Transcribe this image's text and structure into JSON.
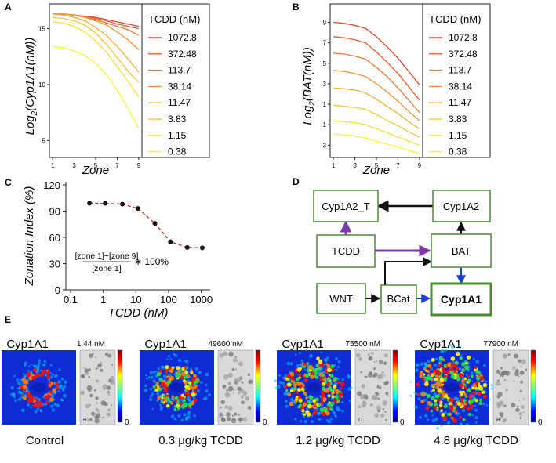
{
  "panels": {
    "A": {
      "label": "A"
    },
    "B": {
      "label": "B"
    },
    "C": {
      "label": "C"
    },
    "D": {
      "label": "D"
    },
    "E": {
      "label": "E"
    }
  },
  "chart_data": [
    {
      "panel": "A",
      "type": "line",
      "xlabel": "Zone",
      "ylabel": "Log2(Cyp1A1(nM))",
      "ylabel_parts": {
        "base": "Log",
        "sub": "2",
        "rest": "(Cyp1A1(nM))"
      },
      "x": [
        1,
        2,
        3,
        4,
        5,
        6,
        7,
        8,
        9
      ],
      "xticks": [
        "1",
        "3",
        "5",
        "7",
        "9"
      ],
      "yticks": [
        "5",
        "10",
        "15"
      ],
      "ylim": [
        3.5,
        17.2
      ],
      "xlim": [
        0.7,
        9.3
      ],
      "legend_title": "TCDD (nM)",
      "legend_position": "right",
      "series": [
        {
          "name": "1072.8",
          "color": "#e8452b",
          "values": [
            16.3,
            16.3,
            16.2,
            16.1,
            16.0,
            15.8,
            15.6,
            15.4,
            15.2
          ]
        },
        {
          "name": "372.48",
          "color": "#ec5b2d",
          "values": [
            16.3,
            16.3,
            16.2,
            16.1,
            15.9,
            15.7,
            15.4,
            15.2,
            15.0
          ]
        },
        {
          "name": "113.7",
          "color": "#f07830",
          "values": [
            16.3,
            16.3,
            16.2,
            16.0,
            15.8,
            15.5,
            15.2,
            14.9,
            14.4
          ]
        },
        {
          "name": "38.14",
          "color": "#f49331",
          "values": [
            16.3,
            16.3,
            16.2,
            16.0,
            15.7,
            15.3,
            14.7,
            14.0,
            13.1
          ]
        },
        {
          "name": "11.47",
          "color": "#f8ad33",
          "values": [
            16.3,
            16.2,
            16.0,
            15.7,
            15.1,
            14.4,
            13.4,
            12.3,
            11.1
          ]
        },
        {
          "name": "3.83",
          "color": "#fbc635",
          "values": [
            16.0,
            15.9,
            15.7,
            15.3,
            14.6,
            13.6,
            12.4,
            11.2,
            10.2
          ]
        },
        {
          "name": "1.15",
          "color": "#fde036",
          "values": [
            15.6,
            15.5,
            15.2,
            14.7,
            13.9,
            12.9,
            11.6,
            10.3,
            8.9
          ]
        },
        {
          "name": "0.38",
          "color": "#fbf337",
          "values": [
            13.4,
            13.3,
            13.0,
            12.6,
            11.9,
            10.9,
            9.5,
            7.9,
            6.1
          ]
        }
      ]
    },
    {
      "panel": "B",
      "type": "line",
      "xlabel": "Zone",
      "ylabel": "Log2(BAT(nM))",
      "ylabel_parts": {
        "base": "Log",
        "sub": "2",
        "rest": "(BAT(nM))"
      },
      "x": [
        1,
        2,
        3,
        4,
        5,
        6,
        7,
        8,
        9
      ],
      "xticks": [
        "1",
        "3",
        "5",
        "7",
        "9"
      ],
      "yticks": [
        "-3",
        "-1",
        "1",
        "3",
        "5",
        "7",
        "9"
      ],
      "ylim": [
        -4.2,
        10.8
      ],
      "xlim": [
        0.7,
        9.3
      ],
      "legend_title": "TCDD (nM)",
      "legend_position": "right",
      "series": [
        {
          "name": "1072.8",
          "color": "#e8452b",
          "values": [
            9.0,
            8.9,
            8.7,
            8.4,
            7.6,
            6.6,
            5.5,
            4.2,
            2.9
          ]
        },
        {
          "name": "372.48",
          "color": "#ec5b2d",
          "values": [
            7.6,
            7.5,
            7.3,
            7.0,
            6.1,
            5.1,
            4.0,
            2.7,
            1.4
          ]
        },
        {
          "name": "113.7",
          "color": "#f07830",
          "values": [
            6.0,
            5.9,
            5.7,
            5.4,
            4.6,
            3.7,
            2.6,
            1.4,
            0.2
          ]
        },
        {
          "name": "38.14",
          "color": "#f49331",
          "values": [
            4.3,
            4.2,
            4.0,
            3.7,
            3.0,
            2.2,
            1.3,
            0.3,
            -0.6
          ]
        },
        {
          "name": "11.47",
          "color": "#f8ad33",
          "values": [
            2.6,
            2.5,
            2.4,
            2.1,
            1.5,
            0.8,
            0.1,
            -0.7,
            -1.4
          ]
        },
        {
          "name": "3.83",
          "color": "#fbc635",
          "values": [
            0.9,
            0.8,
            0.7,
            0.5,
            0.0,
            -0.6,
            -1.1,
            -1.7,
            -2.2
          ]
        },
        {
          "name": "1.15",
          "color": "#fde036",
          "values": [
            -0.6,
            -0.7,
            -0.8,
            -1.0,
            -1.4,
            -1.8,
            -2.2,
            -2.6,
            -3.0
          ]
        },
        {
          "name": "0.38",
          "color": "#fbf337",
          "values": [
            -1.9,
            -2.0,
            -2.1,
            -2.3,
            -2.6,
            -2.9,
            -3.2,
            -3.5,
            -3.8
          ]
        }
      ]
    },
    {
      "panel": "C",
      "type": "scatter",
      "xlabel": "TCDD (nM)",
      "ylabel": "Zonation Index (%)",
      "x_scale": "log",
      "x": [
        0.38,
        1.15,
        3.83,
        11.47,
        38.14,
        113.7,
        372.48,
        1072.8
      ],
      "y": [
        99.0,
        98.8,
        98.0,
        93.0,
        76.0,
        55.0,
        48.5,
        48.0
      ],
      "xticks": [
        "0.1",
        "1",
        "10",
        "100",
        "1000"
      ],
      "xtick_values": [
        0.1,
        1,
        10,
        100,
        1000
      ],
      "yticks": [
        "0",
        "30",
        "60",
        "90",
        "120"
      ],
      "ylim": [
        0,
        120
      ],
      "xlim": [
        0.1,
        1500
      ],
      "fit_line_color": "#cc1f1f",
      "formula": {
        "numerator": "[zone 1]−[zone 9]",
        "denominator": "[zone 1]",
        "suffix": "∗ 100%"
      }
    }
  ],
  "diagram": {
    "nodes": {
      "cyp1a2_t": "Cyp1A2_T",
      "cyp1a2": "Cyp1A2",
      "tcdd": "TCDD",
      "bat": "BAT",
      "wnt": "WNT",
      "bcat": "BCat",
      "cyp1a1": "Cyp1A1"
    },
    "colors": {
      "box_border": "#4a8a36",
      "black": "#111111",
      "purple": "#7b3aa6",
      "blue": "#1f3fd6"
    }
  },
  "images": [
    {
      "title": "Cyp1A1",
      "value": "1.44 nM",
      "caption": "Control",
      "scale_max": "",
      "scale_min": "0",
      "corner": "B",
      "ring_scale": 0.0
    },
    {
      "title": "Cyp1A1",
      "value": "49600 nM",
      "caption": "0.3 μg/kg TCDD",
      "scale_max": "",
      "scale_min": "0",
      "corner": "C",
      "ring_scale": 0.35
    },
    {
      "title": "Cyp1A1",
      "value": "75500 nM",
      "caption": "1.2 μg/kg TCDD",
      "scale_max": "",
      "scale_min": "0",
      "corner": "D",
      "ring_scale": 0.7
    },
    {
      "title": "Cyp1A1",
      "value": "77900 nM",
      "caption": "4.8 μg/kg TCDD",
      "scale_max": "",
      "scale_min": "0",
      "corner": "H",
      "ring_scale": 1.0
    }
  ]
}
